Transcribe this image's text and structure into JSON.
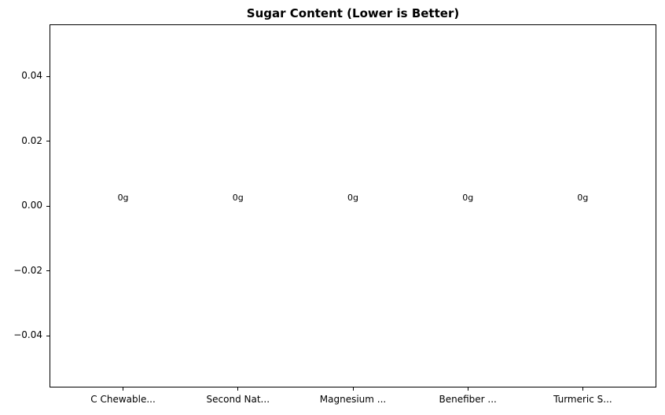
{
  "chart_data": {
    "type": "bar",
    "title": "Sugar Content (Lower is Better)",
    "categories": [
      "C Chewable...",
      "Second Nat...",
      "Magnesium ...",
      "Benefiber ...",
      "Turmeric S..."
    ],
    "values": [
      0,
      0,
      0,
      0,
      0
    ],
    "bar_labels": [
      "0g",
      "0g",
      "0g",
      "0g",
      "0g"
    ],
    "xlabel": "",
    "ylabel": "",
    "ylim": [
      -0.056,
      0.056
    ],
    "xlim_units": [
      -0.64,
      4.64
    ],
    "yticks": [
      0.04,
      0.02,
      0.0,
      -0.02,
      -0.04
    ],
    "ytick_labels": [
      "0.04",
      "0.02",
      "0.00",
      "−0.02",
      "−0.04"
    ],
    "grid": false,
    "legend": null,
    "colors": {
      "spine": "#000000",
      "text": "#000000",
      "background": "#ffffff",
      "bar": "#1f77b4"
    }
  }
}
